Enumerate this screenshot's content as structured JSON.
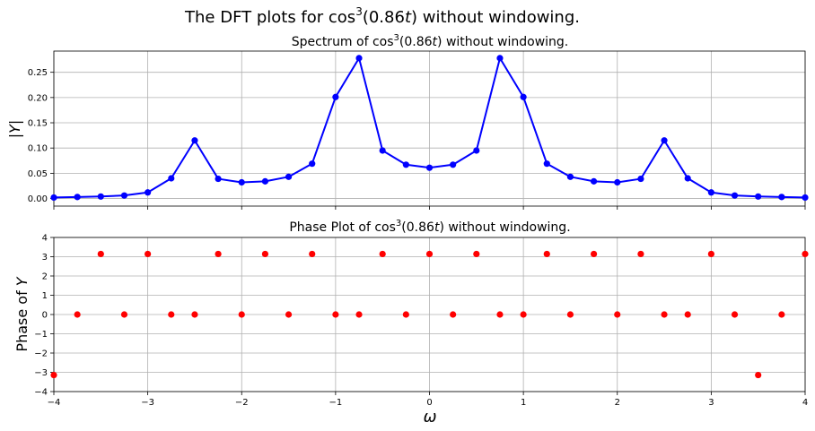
{
  "figure": {
    "suptitle_pre": "The DFT plots for cos",
    "suptitle_sup": "3",
    "suptitle_post": "(0.86",
    "suptitle_var": "t",
    "suptitle_end": ") without windowing."
  },
  "chart_data": [
    {
      "type": "line",
      "title_pre": "Spectrum of cos",
      "title_sup": "3",
      "title_post": "(0.86",
      "title_var": "t",
      "title_end": ") without windowing.",
      "xlabel": "",
      "ylabel": "|Y|",
      "xlim": [
        -4,
        4
      ],
      "ylim": [
        -0.015,
        0.292
      ],
      "xticks": [
        -4,
        -3,
        -2,
        -1,
        0,
        1,
        2,
        3,
        4
      ],
      "xticklabels_visible": false,
      "yticks": [
        0.0,
        0.05,
        0.1,
        0.15,
        0.2,
        0.25
      ],
      "yticklabels": [
        "0.00",
        "0.05",
        "0.10",
        "0.15",
        "0.20",
        "0.25"
      ],
      "grid": true,
      "color": "#0000ff",
      "x": [
        -4,
        -3.75,
        -3.5,
        -3.25,
        -3,
        -2.75,
        -2.5,
        -2.25,
        -2,
        -1.75,
        -1.5,
        -1.25,
        -1,
        -0.75,
        -0.5,
        -0.25,
        0,
        0.25,
        0.5,
        0.75,
        1,
        1.25,
        1.5,
        1.75,
        2,
        2.25,
        2.5,
        2.75,
        3,
        3.25,
        3.5,
        3.75,
        4
      ],
      "y": [
        0.002,
        0.003,
        0.004,
        0.006,
        0.012,
        0.04,
        0.115,
        0.039,
        0.032,
        0.034,
        0.043,
        0.069,
        0.201,
        0.278,
        0.095,
        0.067,
        0.061,
        0.067,
        0.095,
        0.278,
        0.201,
        0.069,
        0.043,
        0.034,
        0.032,
        0.039,
        0.115,
        0.04,
        0.012,
        0.006,
        0.004,
        0.003,
        0.002
      ]
    },
    {
      "type": "scatter",
      "title_pre": "Phase Plot of cos",
      "title_sup": "3",
      "title_post": "(0.86",
      "title_var": "t",
      "title_end": ") without windowing.",
      "xlabel": "ω",
      "ylabel_pre": "Phase of ",
      "ylabel_var": "Y",
      "xlim": [
        -4,
        4
      ],
      "ylim": [
        -4,
        4
      ],
      "xticks": [
        -4,
        -3,
        -2,
        -1,
        0,
        1,
        2,
        3,
        4
      ],
      "xticklabels": [
        "−4",
        "−3",
        "−2",
        "−1",
        "0",
        "1",
        "2",
        "3",
        "4"
      ],
      "yticks": [
        -4,
        -3,
        -2,
        -1,
        0,
        1,
        2,
        3,
        4
      ],
      "yticklabels": [
        "−4",
        "−3",
        "−2",
        "−1",
        "0",
        "1",
        "2",
        "3",
        "4"
      ],
      "grid": true,
      "color": "#ff0000",
      "x": [
        -4,
        -3.75,
        -3.5,
        -3.25,
        -3,
        -2.75,
        -2.5,
        -2.25,
        -2,
        -1.75,
        -1.5,
        -1.25,
        -1,
        -0.75,
        -0.5,
        -0.25,
        0,
        0.25,
        0.5,
        0.75,
        1,
        1.25,
        1.5,
        1.75,
        2,
        2.25,
        2.5,
        2.75,
        3,
        3.25,
        3.5,
        3.75,
        4
      ],
      "y": [
        -3.14159,
        0,
        3.14159,
        0,
        3.14159,
        0,
        0,
        3.14159,
        0,
        3.14159,
        0,
        3.14159,
        0,
        0,
        3.14159,
        0,
        3.14159,
        0,
        3.14159,
        0,
        0,
        3.14159,
        0,
        3.14159,
        0,
        3.14159,
        0,
        0,
        3.14159,
        0,
        -3.14159,
        0,
        3.14159
      ]
    }
  ]
}
